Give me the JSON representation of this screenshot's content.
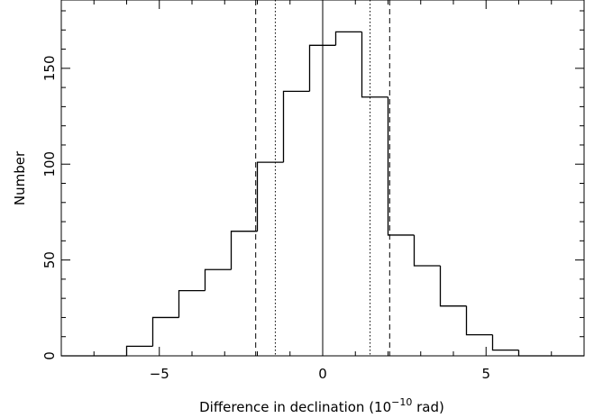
{
  "chart_data": {
    "type": "bar",
    "title": "",
    "xlabel": "Difference in declination (10",
    "xlabel_exponent": "−10",
    "xlabel_suffix": " rad)",
    "ylabel": "Number",
    "xlim": [
      -8,
      8
    ],
    "ylim": [
      0,
      180
    ],
    "x_ticks": [
      {
        "value": -5,
        "label": "−5"
      },
      {
        "value": 0,
        "label": "0"
      },
      {
        "value": 5,
        "label": "5"
      }
    ],
    "y_ticks": [
      {
        "value": 0,
        "label": "0"
      },
      {
        "value": 50,
        "label": "50"
      },
      {
        "value": 100,
        "label": "100"
      },
      {
        "value": 150,
        "label": "150"
      }
    ],
    "bin_edges": [
      -8,
      -6,
      -5.2,
      -4.4,
      -3.6,
      -2.8,
      -2.0,
      -1.2,
      -0.4,
      0.4,
      1.2,
      2.0,
      2.8,
      3.6,
      4.4,
      5.2,
      6.0,
      8
    ],
    "counts": [
      0,
      5,
      20,
      34,
      45,
      65,
      101,
      138,
      162,
      169,
      135,
      63,
      47,
      26,
      11,
      3,
      0
    ],
    "reference_lines": [
      {
        "x": -2.05,
        "style": "dashed"
      },
      {
        "x": -1.45,
        "style": "dotted"
      },
      {
        "x": 0,
        "style": "solid"
      },
      {
        "x": 1.45,
        "style": "dotted"
      },
      {
        "x": 2.05,
        "style": "dashed"
      }
    ],
    "colors": {
      "line": "#000000",
      "background": "#ffffff"
    },
    "grid": false,
    "legend": "none"
  }
}
